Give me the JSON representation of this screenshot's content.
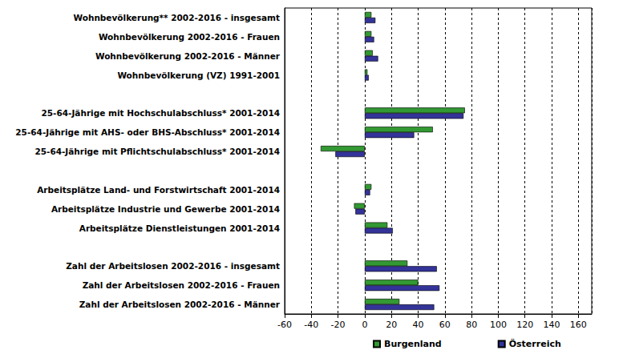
{
  "chart_data": {
    "type": "bar",
    "orientation": "horizontal",
    "categories": [
      "Wohnbevölkerung** 2002-2016 - insgesamt",
      "Wohnbevölkerung 2002-2016 - Frauen",
      "Wohnbevölkerung 2002-2016 - Männer",
      "Wohnbevölkerung (VZ) 1991-2001",
      null,
      "25-64-Jährige mit Hochschulabschluss* 2001-2014",
      "25-64-Jährige mit AHS- oder BHS-Abschluss* 2001-2014",
      "25-64-Jährige mit Pflichtschulabschluss* 2001-2014",
      null,
      "Arbeitsplätze Land- und Forstwirtschaft 2001-2014",
      "Arbeitsplätze Industrie und Gewerbe 2001-2014",
      "Arbeitsplätze Dienstleistungen 2001-2014",
      null,
      "Zahl der Arbeitslosen 2002-2016 - insgesamt",
      "Zahl der Arbeitslosen 2002-2016 - Frauen",
      "Zahl der Arbeitslosen 2002-2016 - Männer"
    ],
    "series": [
      {
        "name": "Burgenland",
        "color": "#339933",
        "values": [
          5,
          5,
          6,
          2,
          null,
          75,
          51,
          -33,
          null,
          5,
          -8,
          17,
          null,
          32,
          40,
          26
        ]
      },
      {
        "name": "Österreich",
        "color": "#333399",
        "values": [
          8,
          7,
          10,
          3,
          null,
          74,
          37,
          -22,
          null,
          4,
          -7,
          21,
          null,
          54,
          56,
          52
        ]
      }
    ],
    "xlim": [
      -60,
      170
    ],
    "xticks": [
      -60,
      -40,
      -20,
      0,
      20,
      40,
      60,
      80,
      100,
      120,
      140,
      160
    ],
    "grid": true,
    "legend": "bottom"
  }
}
